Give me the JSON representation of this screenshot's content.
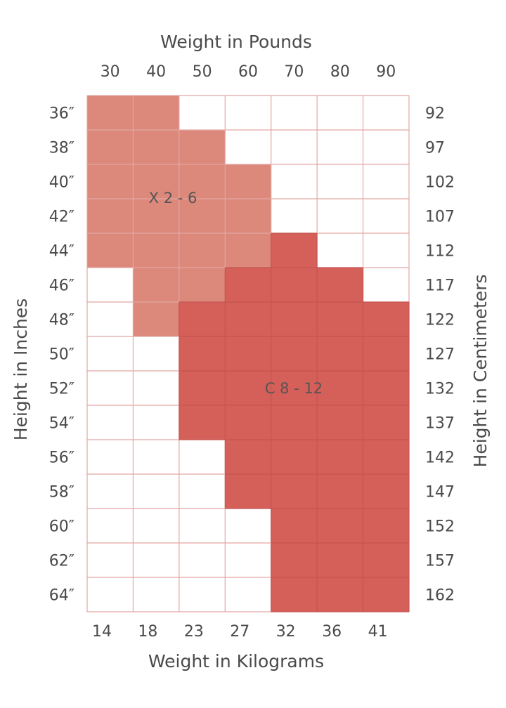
{
  "chart_data": {
    "type": "heatmap",
    "title": "",
    "top_axis_label": "Weight in Pounds",
    "bottom_axis_label": "Weight in Kilograms",
    "left_axis_label": "Height in Inches",
    "right_axis_label": "Height in Centimeters",
    "pound_ticks": [
      "30",
      "40",
      "50",
      "60",
      "70",
      "80",
      "90"
    ],
    "kilogram_ticks": [
      "14",
      "18",
      "23",
      "27",
      "32",
      "36",
      "41"
    ],
    "inch_ticks": [
      "36″",
      "38″",
      "40″",
      "42″",
      "44″",
      "46″",
      "48″",
      "50″",
      "52″",
      "54″",
      "56″",
      "58″",
      "60″",
      "62″",
      "64″"
    ],
    "centimeter_ticks": [
      "92",
      "97",
      "102",
      "107",
      "112",
      "117",
      "122",
      "127",
      "132",
      "137",
      "142",
      "147",
      "152",
      "157",
      "162"
    ],
    "series": [
      {
        "name": "X 2 - 6",
        "color": "#dc887a"
      },
      {
        "name": "C 8 - 12",
        "color": "#d55f59"
      }
    ],
    "grid": [
      [
        1,
        1,
        0,
        0,
        0,
        0,
        0
      ],
      [
        1,
        1,
        1,
        0,
        0,
        0,
        0
      ],
      [
        1,
        1,
        1,
        1,
        0,
        0,
        0
      ],
      [
        1,
        1,
        1,
        1,
        0,
        0,
        0
      ],
      [
        1,
        1,
        1,
        1,
        2,
        0,
        0
      ],
      [
        0,
        1,
        1,
        2,
        2,
        2,
        0
      ],
      [
        0,
        1,
        2,
        2,
        2,
        2,
        2
      ],
      [
        0,
        0,
        2,
        2,
        2,
        2,
        2
      ],
      [
        0,
        0,
        2,
        2,
        2,
        2,
        2
      ],
      [
        0,
        0,
        2,
        2,
        2,
        2,
        2
      ],
      [
        0,
        0,
        0,
        2,
        2,
        2,
        2
      ],
      [
        0,
        0,
        0,
        2,
        2,
        2,
        2
      ],
      [
        0,
        0,
        0,
        0,
        2,
        2,
        2
      ],
      [
        0,
        0,
        0,
        0,
        2,
        2,
        2
      ],
      [
        0,
        0,
        0,
        0,
        2,
        2,
        2
      ]
    ],
    "colors": {
      "empty": "#ffffff",
      "grid_line": "#e3a7a5",
      "grid_line_dark": "#c45552"
    }
  }
}
